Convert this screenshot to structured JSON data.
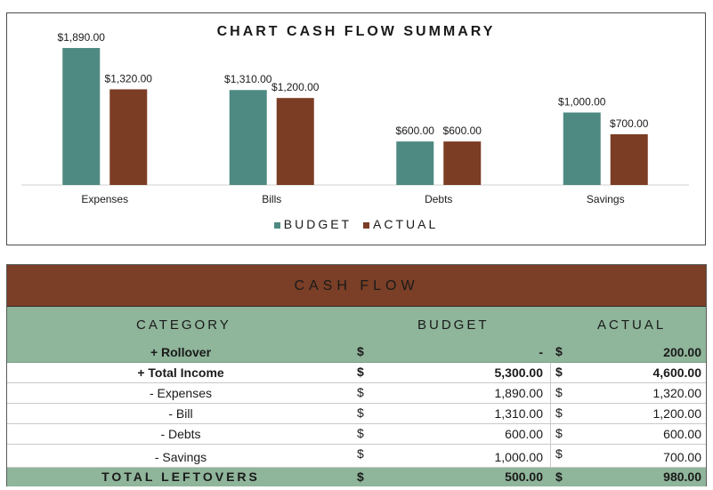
{
  "chart_data": {
    "type": "bar",
    "title": "CHART CASH FLOW SUMMARY",
    "categories": [
      "Expenses",
      "Bills",
      "Debts",
      "Savings"
    ],
    "series": [
      {
        "name": "BUDGET",
        "values": [
          1890,
          1310,
          600,
          1000
        ],
        "labels": [
          "$1,890.00",
          "$1,310.00",
          "$600.00",
          "$1,000.00"
        ]
      },
      {
        "name": "ACTUAL",
        "values": [
          1320,
          1200,
          600,
          700
        ],
        "labels": [
          "$1,320.00",
          "$1,200.00",
          "$600.00",
          "$700.00"
        ]
      }
    ],
    "ylim": [
      0,
      2000
    ],
    "legend_position": "bottom",
    "colors": {
      "BUDGET": "#4e8a82",
      "ACTUAL": "#7b3d24"
    },
    "xlabel": "",
    "ylabel": ""
  },
  "table": {
    "title": "CASH FLOW",
    "headers": {
      "category": "CATEGORY",
      "budget": "BUDGET",
      "actual": "ACTUAL"
    },
    "currency": "$",
    "rows": {
      "rollover": {
        "category": "+ Rollover",
        "budget": "-",
        "actual": "200.00"
      },
      "income": {
        "category": "+ Total Income",
        "budget": "5,300.00",
        "actual": "4,600.00"
      },
      "expenses": {
        "category": "-  Expenses",
        "budget": "1,890.00",
        "actual": "1,320.00"
      },
      "bill": {
        "category": "-  Bill",
        "budget": "1,310.00",
        "actual": "1,200.00"
      },
      "debts": {
        "category": "-  Debts",
        "budget": "600.00",
        "actual": "600.00"
      },
      "savings": {
        "category": "-  Savings",
        "budget": "1,000.00",
        "actual": "700.00"
      },
      "total": {
        "category": "TOTAL LEFTOVERS",
        "budget": "500.00",
        "actual": "980.00"
      }
    },
    "colors": {
      "header_bg": "#7a3f26",
      "accent_green": "#8fb59a"
    }
  }
}
